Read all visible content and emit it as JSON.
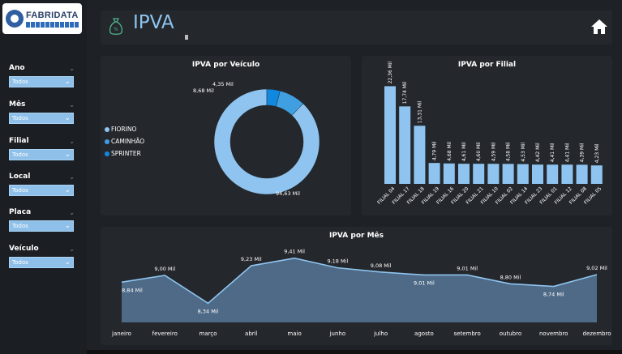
{
  "brand": {
    "name": "FABRIDATA"
  },
  "header": {
    "title": "IPVA",
    "icon": "money-bag-icon",
    "home_icon": "home-icon"
  },
  "filters": [
    {
      "label": "Ano",
      "value": "Todos"
    },
    {
      "label": "Mês",
      "value": "Todos"
    },
    {
      "label": "Filial",
      "value": "Todos"
    },
    {
      "label": "Local",
      "value": "Todos"
    },
    {
      "label": "Placa",
      "value": "Todos"
    },
    {
      "label": "Veículo",
      "value": "Todos"
    }
  ],
  "colors": {
    "accent": "#8ec4ef",
    "bar": "#8ec4ef",
    "area": "#4f6a87",
    "line": "#8ec4ef",
    "card": "#24272c",
    "bg": "#1e2126"
  },
  "chart_data": [
    {
      "type": "pie",
      "title": "IPVA por Veículo",
      "categories": [
        "FIORINO",
        "CAMINHÃO",
        "SPRINTER"
      ],
      "values": [
        94.63,
        8.68,
        4.35
      ],
      "labels": [
        "94,63 Mil",
        "8,68 Mil",
        "4,35 Mil"
      ],
      "colors": [
        "#8ec4ef",
        "#3f9fe0",
        "#1188e0"
      ],
      "legend": "left"
    },
    {
      "type": "bar",
      "title": "IPVA por Filial",
      "categories": [
        "FILIAL 04",
        "FILIAL 17",
        "FILIAL 18",
        "FILIAL 19",
        "FILIAL 16",
        "FILIAL 20",
        "FILIAL 21",
        "FILIAL 10",
        "FILIAL 02",
        "FILIAL 14",
        "FILIAL 23",
        "FILIAL 01",
        "FILIAL 12",
        "FILIAL 08",
        "FILIAL 05"
      ],
      "values": [
        22.36,
        17.74,
        13.31,
        4.79,
        4.68,
        4.61,
        4.6,
        4.59,
        4.58,
        4.53,
        4.42,
        4.41,
        4.41,
        4.39,
        4.23
      ],
      "labels": [
        "22,36 Mil",
        "17,74 Mil",
        "13,31 Mil",
        "4,79 Mil",
        "4,68 Mil",
        "4,61 Mil",
        "4,60 Mil",
        "4,59 Mil",
        "4,58 Mil",
        "4,53 Mil",
        "4,42 Mil",
        "4,41 Mil",
        "4,41 Mil",
        "4,39 Mil",
        "4,23 Mil"
      ],
      "ylim": [
        0,
        25
      ]
    },
    {
      "type": "area",
      "title": "IPVA por Mês",
      "categories": [
        "janeiro",
        "fevereiro",
        "março",
        "abril",
        "maio",
        "junho",
        "julho",
        "agosto",
        "setembro",
        "outubro",
        "novembro",
        "dezembro"
      ],
      "values": [
        8.84,
        9.0,
        8.34,
        9.23,
        9.41,
        9.18,
        9.08,
        9.01,
        9.01,
        8.8,
        8.74,
        9.02
      ],
      "labels": [
        "8,84 Mil",
        "9,00 Mil",
        "8,34 Mil",
        "9,23 Mil",
        "9,41 Mil",
        "9,18 Mil",
        "9,08 Mil",
        "9,01 Mil",
        "9,01 Mil",
        "8,80 Mil",
        "8,74 Mil",
        "9,02 Mil"
      ],
      "label_pos": [
        "below",
        "above",
        "below",
        "above",
        "above",
        "above",
        "above",
        "below",
        "above",
        "above",
        "below",
        "above"
      ],
      "ylim": [
        8.0,
        9.5
      ]
    }
  ]
}
